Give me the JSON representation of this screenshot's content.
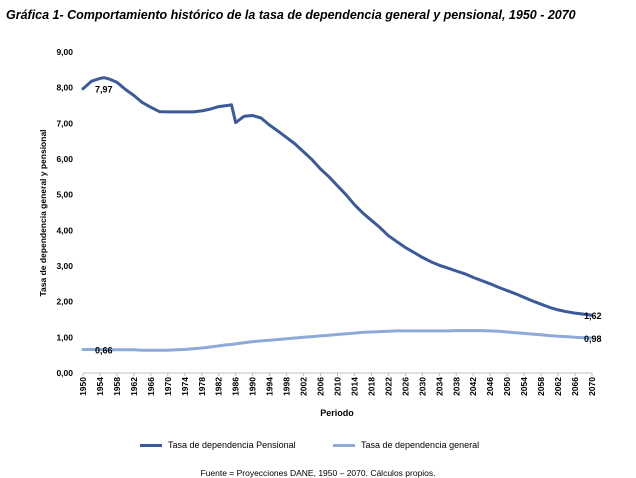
{
  "chart_data": {
    "type": "line",
    "title": "Gráfica 1- Comportamiento histórico de la tasa de dependencia general y pensional, 1950 - 2070",
    "xlabel": "Periodo",
    "ylabel": "Tasa de dependencia general y pensional",
    "ylim": [
      0,
      9
    ],
    "yticks": [
      "0,00",
      "1,00",
      "2,00",
      "3,00",
      "4,00",
      "5,00",
      "6,00",
      "7,00",
      "8,00",
      "9,00"
    ],
    "xticks": [
      "1950",
      "1954",
      "1958",
      "1962",
      "1966",
      "1970",
      "1974",
      "1978",
      "1982",
      "1986",
      "1990",
      "1994",
      "1998",
      "2002",
      "2006",
      "2010",
      "2014",
      "2018",
      "2022",
      "2026",
      "2030",
      "2034",
      "2038",
      "2042",
      "2046",
      "2050",
      "2054",
      "2058",
      "2062",
      "2066",
      "2070"
    ],
    "legend_position": "bottom",
    "grid": false,
    "x": [
      1950,
      1952,
      1954,
      1955,
      1956,
      1958,
      1960,
      1962,
      1964,
      1966,
      1968,
      1970,
      1972,
      1974,
      1976,
      1978,
      1980,
      1982,
      1984,
      1985,
      1986,
      1988,
      1990,
      1992,
      1994,
      1996,
      1998,
      2000,
      2002,
      2004,
      2006,
      2008,
      2010,
      2012,
      2014,
      2016,
      2018,
      2020,
      2022,
      2024,
      2026,
      2028,
      2030,
      2032,
      2034,
      2036,
      2038,
      2040,
      2042,
      2044,
      2046,
      2048,
      2050,
      2052,
      2054,
      2056,
      2058,
      2060,
      2062,
      2064,
      2066,
      2068,
      2070
    ],
    "series": [
      {
        "name": "Tasa de dependencia Pensional",
        "color": "#3a5a99",
        "values": [
          7.97,
          8.18,
          8.26,
          8.28,
          8.25,
          8.15,
          7.95,
          7.78,
          7.58,
          7.45,
          7.33,
          7.32,
          7.32,
          7.32,
          7.32,
          7.35,
          7.4,
          7.47,
          7.5,
          7.52,
          7.02,
          7.2,
          7.22,
          7.15,
          6.95,
          6.78,
          6.6,
          6.42,
          6.2,
          5.98,
          5.72,
          5.5,
          5.25,
          5.0,
          4.72,
          4.48,
          4.28,
          4.08,
          3.85,
          3.68,
          3.52,
          3.38,
          3.24,
          3.12,
          3.02,
          2.94,
          2.86,
          2.78,
          2.68,
          2.59,
          2.5,
          2.4,
          2.31,
          2.22,
          2.12,
          2.02,
          1.93,
          1.84,
          1.77,
          1.72,
          1.68,
          1.65,
          1.62
        ]
      },
      {
        "name": "Tasa de dependencia general",
        "color": "#8eaad8",
        "values": [
          0.66,
          0.66,
          0.66,
          0.66,
          0.65,
          0.65,
          0.65,
          0.65,
          0.64,
          0.64,
          0.64,
          0.64,
          0.65,
          0.66,
          0.68,
          0.7,
          0.73,
          0.76,
          0.79,
          0.8,
          0.82,
          0.85,
          0.88,
          0.9,
          0.92,
          0.94,
          0.96,
          0.98,
          1.0,
          1.02,
          1.04,
          1.06,
          1.08,
          1.1,
          1.12,
          1.14,
          1.15,
          1.16,
          1.17,
          1.18,
          1.18,
          1.18,
          1.18,
          1.18,
          1.18,
          1.18,
          1.19,
          1.19,
          1.19,
          1.19,
          1.18,
          1.17,
          1.15,
          1.13,
          1.11,
          1.09,
          1.07,
          1.05,
          1.03,
          1.02,
          1.0,
          0.99,
          0.98
        ]
      }
    ],
    "annotations": [
      {
        "text": "7,97",
        "x": 1950,
        "y": 7.97,
        "series": 0
      },
      {
        "text": "1,62",
        "x": 2070,
        "y": 1.62,
        "series": 0
      },
      {
        "text": "0,66",
        "x": 1950,
        "y": 0.66,
        "series": 1
      },
      {
        "text": "0,98",
        "x": 2070,
        "y": 0.98,
        "series": 1
      }
    ],
    "source": "Fuente = Proyecciones DANE, 1950 – 2070. Cálculos propios."
  }
}
